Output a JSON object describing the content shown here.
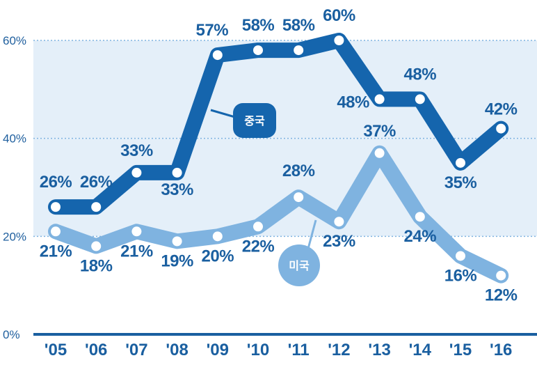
{
  "chart_data": {
    "type": "line",
    "title": "",
    "xlabel": "",
    "ylabel": "",
    "categories": [
      "'05",
      "'06",
      "'07",
      "'08",
      "'09",
      "'10",
      "'11",
      "'12",
      "'13",
      "'14",
      "'15",
      "'16"
    ],
    "ylim": [
      0,
      60
    ],
    "yticks": [
      0,
      20,
      40,
      60
    ],
    "ytick_labels": [
      "0%",
      "20%",
      "40%",
      "60%"
    ],
    "grid": true,
    "series": [
      {
        "name": "중국",
        "color": "#1565ad",
        "values": [
          26,
          26,
          33,
          33,
          57,
          58,
          58,
          60,
          48,
          48,
          35,
          42
        ],
        "labels": [
          "26%",
          "26%",
          "33%",
          "33%",
          "57%",
          "58%",
          "58%",
          "60%",
          "48%",
          "48%",
          "35%",
          "42%"
        ]
      },
      {
        "name": "미국",
        "color": "#7fb3e0",
        "values": [
          21,
          18,
          21,
          19,
          20,
          22,
          28,
          23,
          37,
          24,
          16,
          12
        ],
        "labels": [
          "21%",
          "18%",
          "21%",
          "19%",
          "20%",
          "22%",
          "28%",
          "23%",
          "37%",
          "24%",
          "16%",
          "12%"
        ]
      }
    ]
  }
}
